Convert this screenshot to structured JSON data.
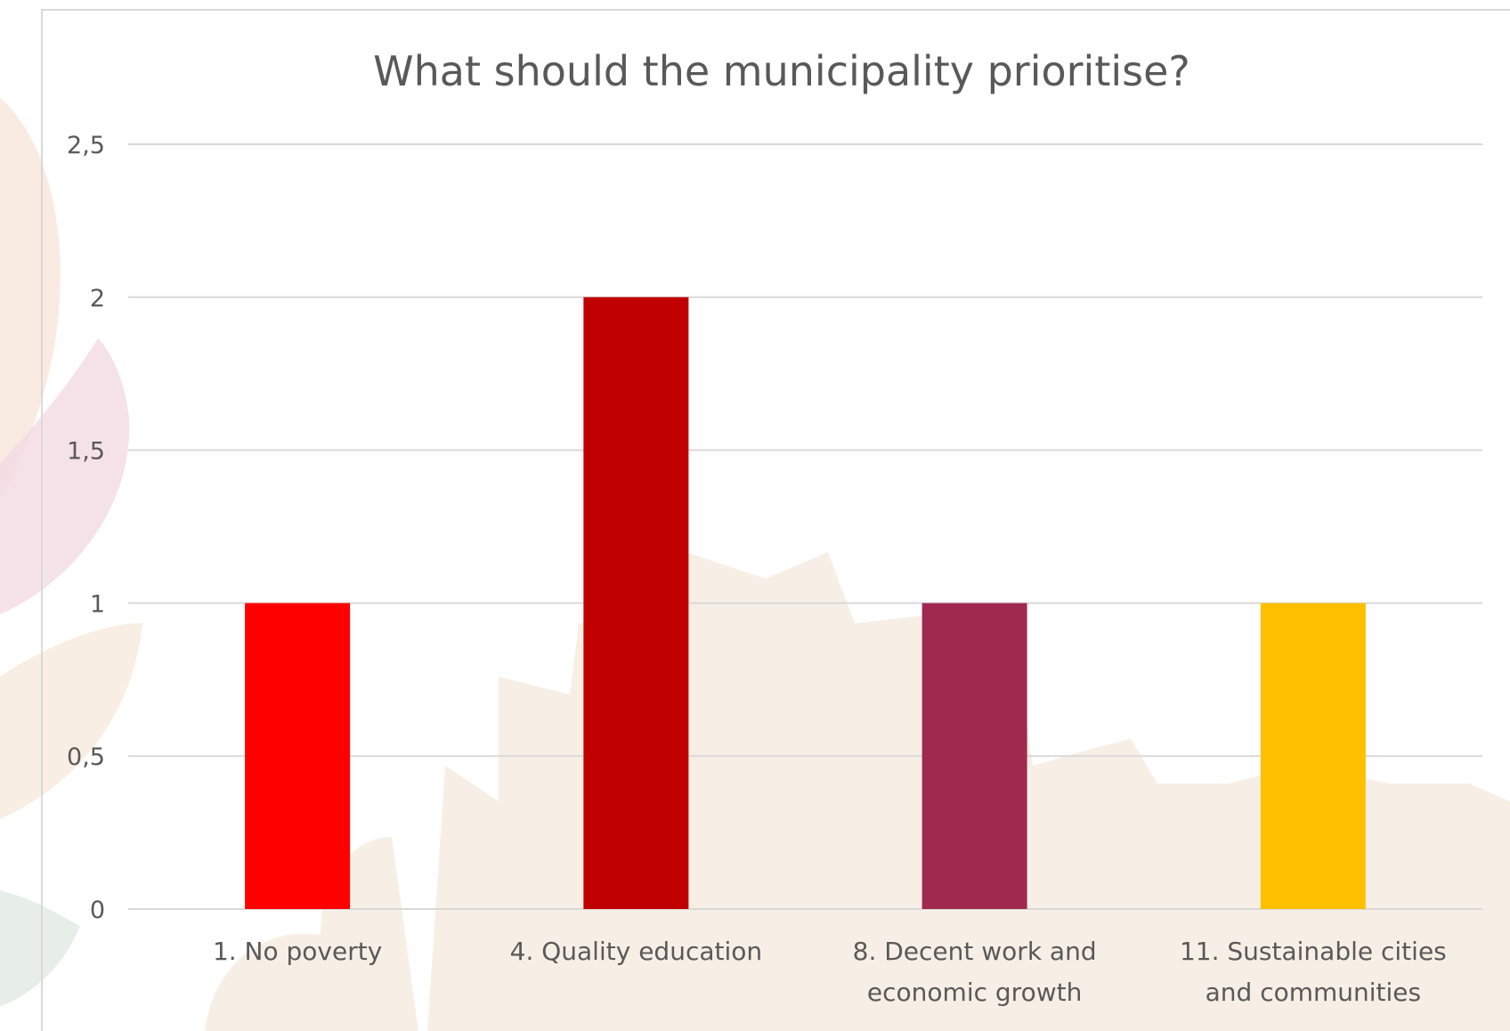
{
  "chart_data": {
    "type": "bar",
    "title": "What should the municipality prioritise?",
    "xlabel": "",
    "ylabel": "",
    "categories": [
      [
        "1. No poverty"
      ],
      [
        "4. Quality education"
      ],
      [
        "8. Decent work and",
        "economic growth"
      ],
      [
        "11. Sustainable cities",
        "and communities"
      ]
    ],
    "values": [
      1,
      2,
      1,
      1
    ],
    "bar_colors": [
      "#ff0000",
      "#c00000",
      "#a0294f",
      "#ffc000"
    ],
    "ylim": [
      0,
      2.5
    ],
    "yticks": [
      0,
      0.5,
      1,
      1.5,
      2,
      2.5
    ],
    "ytick_labels": [
      "0",
      "0,5",
      "1",
      "1,5",
      "2",
      "2,5"
    ],
    "grid": true,
    "legend": "none"
  }
}
